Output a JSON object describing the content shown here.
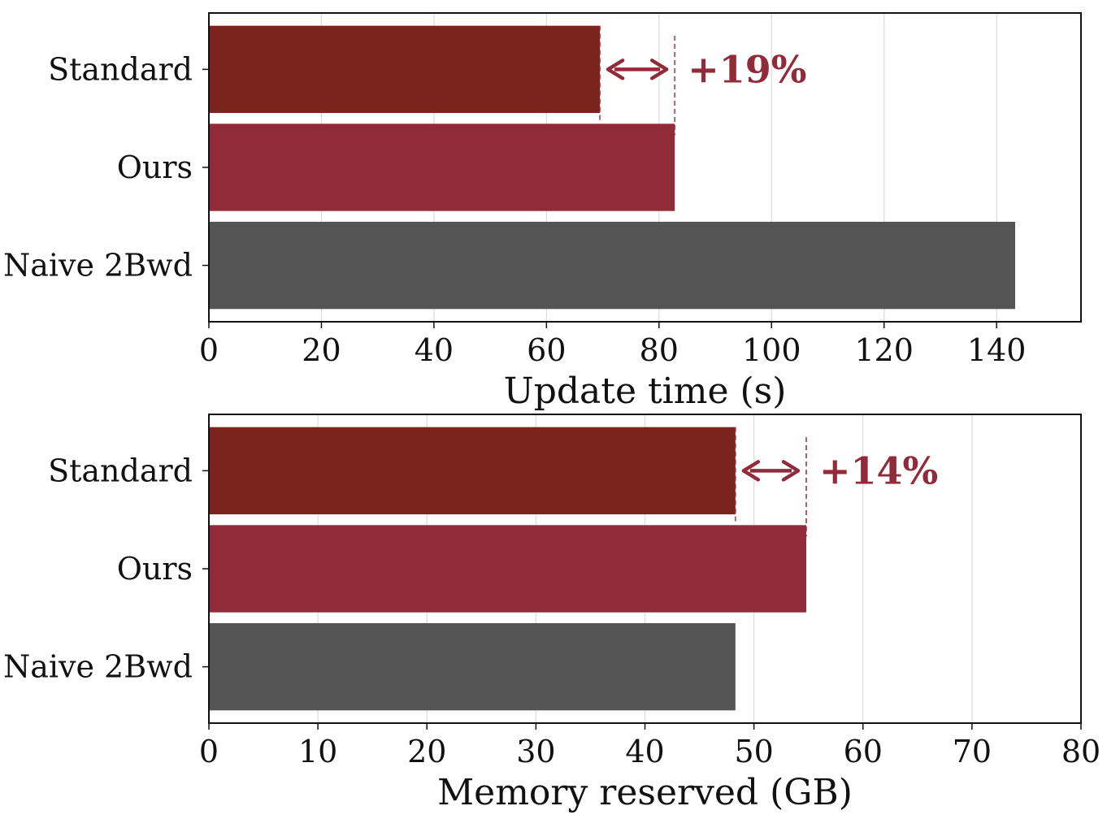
{
  "colors": {
    "standard": "#7b241e",
    "ours": "#922b39",
    "naive": "#545454",
    "annotation": "#922b39",
    "grid": "#dcdcdc"
  },
  "chart_data": [
    {
      "type": "bar",
      "orientation": "horizontal",
      "categories": [
        "Standard",
        "Ours",
        "Naive 2Bwd"
      ],
      "values": [
        69.5,
        82.8,
        143.3
      ],
      "xlabel": "Update time (s)",
      "ylabel": "",
      "xlim": [
        0,
        155
      ],
      "xticks": [
        0,
        20,
        40,
        60,
        80,
        100,
        120,
        140
      ],
      "grid": "vertical",
      "annotation": {
        "text": "+19%",
        "from": 69.5,
        "to": 82.8
      }
    },
    {
      "type": "bar",
      "orientation": "horizontal",
      "categories": [
        "Standard",
        "Ours",
        "Naive 2Bwd"
      ],
      "values": [
        48.3,
        54.8,
        48.3
      ],
      "xlabel": "Memory reserved (GB)",
      "ylabel": "",
      "xlim": [
        0,
        80
      ],
      "xticks": [
        0,
        10,
        20,
        30,
        40,
        50,
        60,
        70,
        80
      ],
      "grid": "vertical",
      "annotation": {
        "text": "+14%",
        "from": 48.3,
        "to": 54.8
      }
    }
  ]
}
